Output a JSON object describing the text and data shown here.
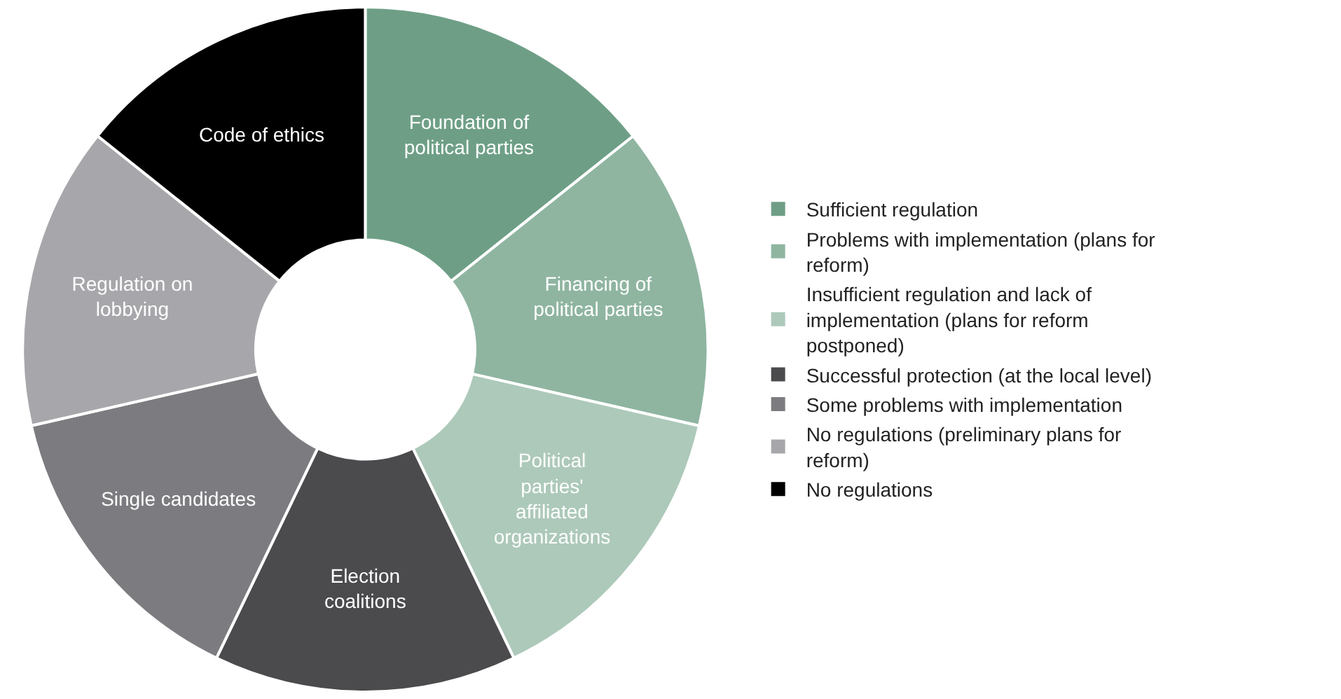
{
  "chart_data": {
    "type": "donut",
    "categories": [
      "Sufficient regulation",
      "Problems with implementation (plans for reform)",
      "Insufficient regulation and lack of implementation (plans for reform postponed)",
      "Successful protection (at the local level)",
      "Some problems with implementation",
      "No regulations (preliminary plans for reform)",
      "No regulations"
    ],
    "values": [
      14.29,
      14.29,
      14.28,
      14.29,
      14.28,
      14.29,
      14.28
    ],
    "value_labels": [
      "Foundation of political parties",
      "Financing of political parties",
      "Political parties' affiliated organizations",
      "Election coalitions",
      "Single candidates",
      "Regulation on lobbying",
      "Code of ethics"
    ],
    "colors": [
      "#6e9f86",
      "#8fb5a1",
      "#adc9ba",
      "#4b4b4e",
      "#7c7c80",
      "#a7a7ab",
      "#000000"
    ],
    "legend": "right"
  }
}
